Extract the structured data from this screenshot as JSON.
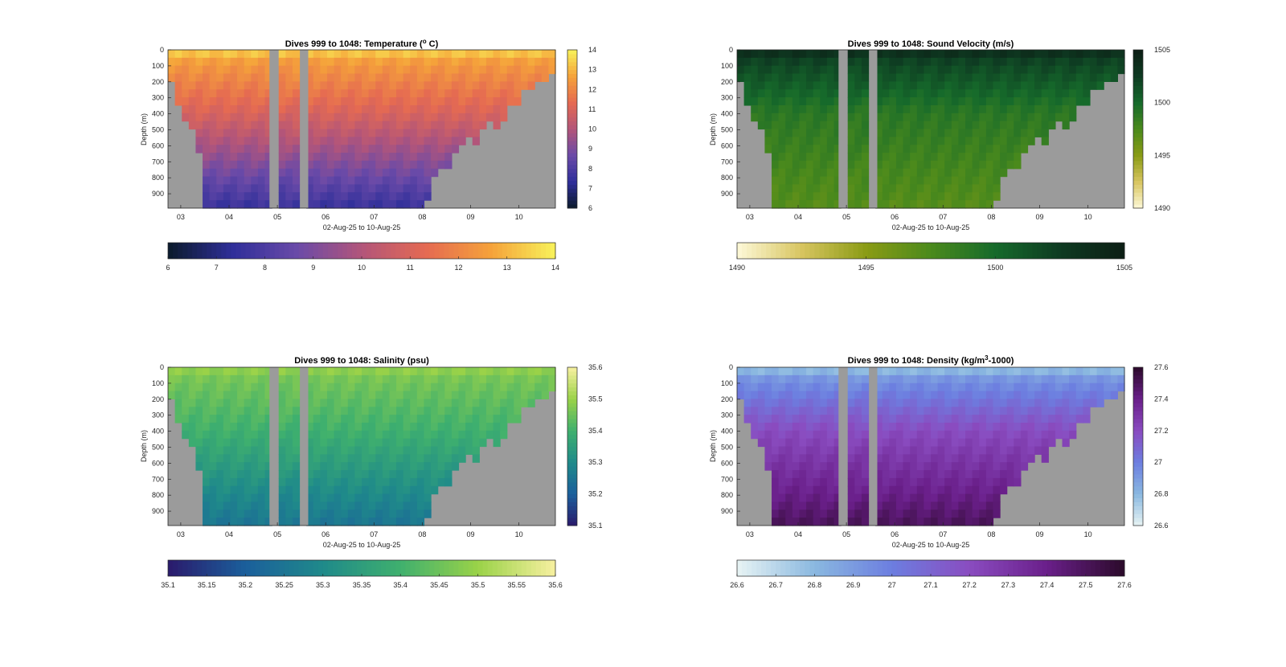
{
  "figure": {
    "background": "#ffffff",
    "nodata_color": "#9b9b9b"
  },
  "chart_data": [
    {
      "type": "heatmap",
      "title": "Dives 999 to 1048: Temperature (",
      "title_sup": "o",
      "title_tail": " C)",
      "ylabel": "Depth (m)",
      "xlabel": "02-Aug-25 to 10-Aug-25",
      "x_ticks": [
        "03",
        "04",
        "05",
        "06",
        "07",
        "08",
        "09",
        "10"
      ],
      "y_ticks": [
        0,
        100,
        200,
        300,
        400,
        500,
        600,
        700,
        800,
        900
      ],
      "ylim": [
        0,
        990
      ],
      "colormap": [
        "#0b1a2b",
        "#2f2f9a",
        "#6a4aa8",
        "#b2557a",
        "#e56a52",
        "#f5a23a",
        "#f8f25a"
      ],
      "clim": [
        6,
        14
      ],
      "right_colorbar_ticks": [
        "6",
        "7",
        "8",
        "9",
        "10",
        "11",
        "12",
        "13",
        "14"
      ],
      "bottom_colorbar_ticks": [
        "6",
        "7",
        "8",
        "9",
        "10",
        "11",
        "12",
        "13",
        "14"
      ],
      "surface_value": 13.5,
      "mid_value": 11,
      "deep_value": 7.5
    },
    {
      "type": "heatmap",
      "title": "Dives 999 to 1048: Sound Velocity (m/s)",
      "title_sup": "",
      "title_tail": "",
      "ylabel": "Depth (m)",
      "xlabel": "02-Aug-25 to 10-Aug-25",
      "x_ticks": [
        "03",
        "04",
        "05",
        "06",
        "07",
        "08",
        "09",
        "10"
      ],
      "y_ticks": [
        0,
        100,
        200,
        300,
        400,
        500,
        600,
        700,
        800,
        900
      ],
      "ylim": [
        0,
        990
      ],
      "colormap": [
        "#fdf9d8",
        "#d8c560",
        "#8a9b15",
        "#4b8a1c",
        "#166a2b",
        "#0e3b22",
        "#0c1e14"
      ],
      "clim": [
        1490,
        1505
      ],
      "right_colorbar_ticks": [
        "1505",
        "1500",
        "1495",
        "1490"
      ],
      "bottom_colorbar_ticks": [
        "1490",
        "1495",
        "1500",
        "1505"
      ],
      "surface_value": 1504,
      "mid_value": 1499,
      "deep_value": 1497
    },
    {
      "type": "heatmap",
      "title": "Dives 999 to 1048: Salinity (psu)",
      "title_sup": "",
      "title_tail": "",
      "ylabel": "Depth (m)",
      "xlabel": "02-Aug-25 to 10-Aug-25",
      "x_ticks": [
        "03",
        "04",
        "05",
        "06",
        "07",
        "08",
        "09",
        "10"
      ],
      "y_ticks": [
        0,
        100,
        200,
        300,
        400,
        500,
        600,
        700,
        800,
        900
      ],
      "ylim": [
        0,
        990
      ],
      "colormap": [
        "#2a1a6b",
        "#1b5f9c",
        "#1f8a8a",
        "#3fb06e",
        "#9ad248",
        "#f7f0a0"
      ],
      "clim": [
        35.1,
        35.6
      ],
      "right_colorbar_ticks": [
        "35.6",
        "35.5",
        "35.4",
        "35.3",
        "35.2",
        "35.1"
      ],
      "bottom_colorbar_ticks": [
        "35.1",
        "35.15",
        "35.2",
        "35.25",
        "35.3",
        "35.35",
        "35.4",
        "35.45",
        "35.5",
        "35.55",
        "35.6"
      ],
      "surface_value": 35.5,
      "mid_value": 35.4,
      "deep_value": 35.25
    },
    {
      "type": "heatmap",
      "title": "Dives 999 to 1048: Density (kg/m",
      "title_sup": "3",
      "title_tail": "-1000)",
      "ylabel": "Depth (m)",
      "xlabel": "02-Aug-25 to 10-Aug-25",
      "x_ticks": [
        "03",
        "04",
        "05",
        "06",
        "07",
        "08",
        "09",
        "10"
      ],
      "y_ticks": [
        0,
        100,
        200,
        300,
        400,
        500,
        600,
        700,
        800,
        900
      ],
      "ylim": [
        0,
        990
      ],
      "colormap": [
        "#e8f4f4",
        "#8ab8e0",
        "#6c7ee0",
        "#8a4cc0",
        "#6a1f8a",
        "#2b0a2a"
      ],
      "clim": [
        26.6,
        27.6
      ],
      "right_colorbar_ticks": [
        "27.6",
        "27.4",
        "27.2",
        "27",
        "26.8",
        "26.6"
      ],
      "bottom_colorbar_ticks": [
        "26.6",
        "26.7",
        "26.8",
        "26.9",
        "27",
        "27.1",
        "27.2",
        "27.3",
        "27.4",
        "27.5",
        "27.6"
      ],
      "surface_value": 26.75,
      "mid_value": 27.2,
      "deep_value": 27.5
    }
  ]
}
